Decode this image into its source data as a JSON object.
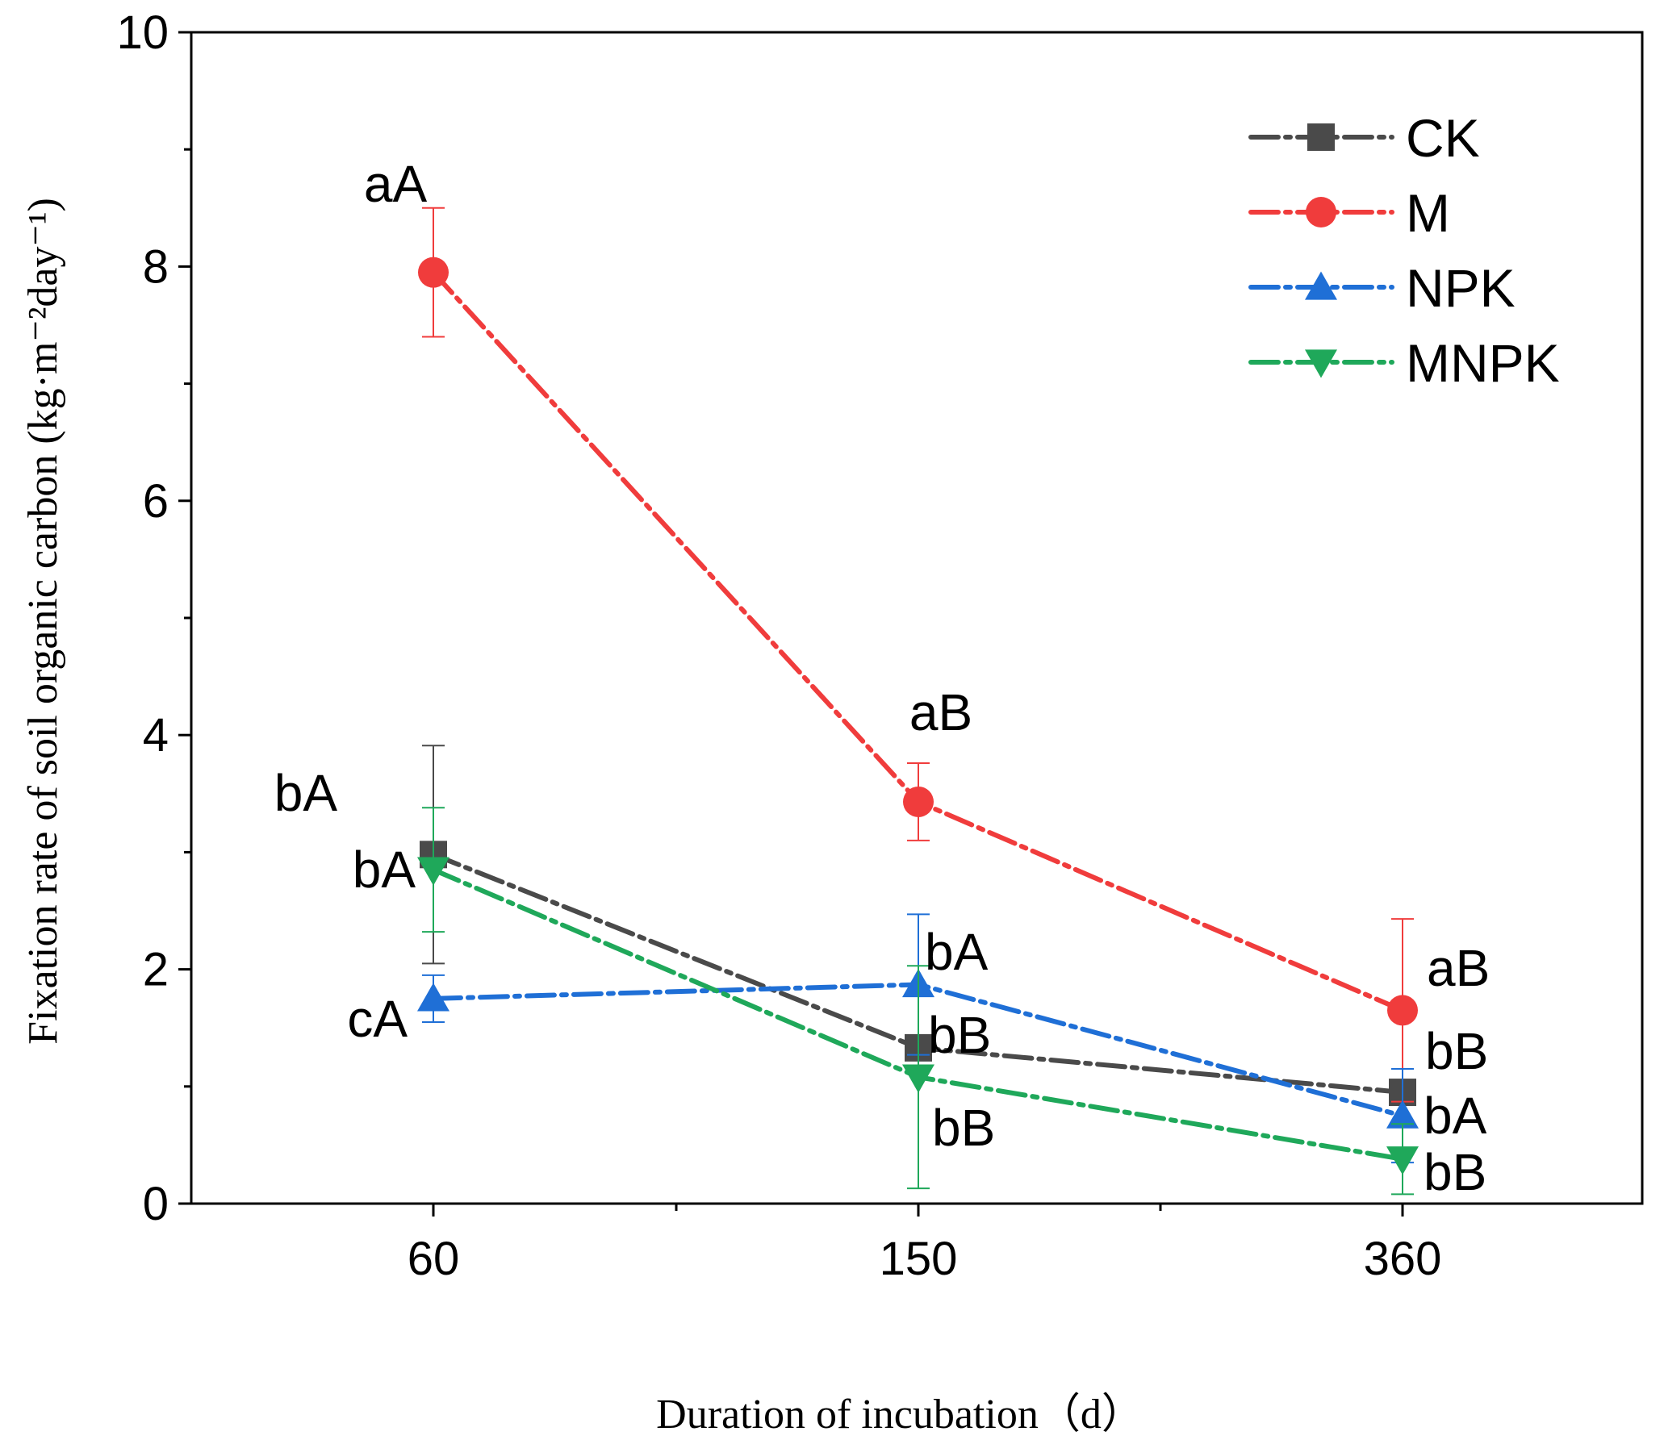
{
  "chart_data": {
    "type": "line",
    "title": "",
    "xlabel": "Duration of incubation（d）",
    "ylabel": "Fixation rate of soil organic carbon (kg·m⁻²day⁻¹)",
    "ylim": [
      0,
      10
    ],
    "yticks": [
      "0",
      "2",
      "4",
      "6",
      "8",
      "10"
    ],
    "categories": [
      "60",
      "150",
      "360"
    ],
    "legend_position": "top-right",
    "series": [
      {
        "name": "CK",
        "color": "#4a4a4a",
        "marker": "square",
        "values": [
          2.98,
          1.33,
          0.95
        ],
        "errors": [
          0.93,
          0.05,
          0.05
        ],
        "letters": [
          "bA",
          "bB",
          "bB"
        ]
      },
      {
        "name": "M",
        "color": "#f03c3c",
        "marker": "circle",
        "values": [
          7.95,
          3.43,
          1.65
        ],
        "errors": [
          0.55,
          0.33,
          0.78
        ],
        "letters": [
          "aA",
          "aB",
          "aB"
        ]
      },
      {
        "name": "NPK",
        "color": "#1f6fd6",
        "marker": "triangle-up",
        "values": [
          1.75,
          1.87,
          0.75
        ],
        "errors": [
          0.2,
          0.6,
          0.4
        ],
        "letters": [
          "cA",
          "bA",
          "bA"
        ]
      },
      {
        "name": "MNPK",
        "color": "#1fa85a",
        "marker": "triangle-down",
        "values": [
          2.85,
          1.08,
          0.38
        ],
        "errors": [
          0.53,
          0.95,
          0.3
        ],
        "letters": [
          "bA",
          "bB",
          "bB"
        ]
      }
    ]
  }
}
